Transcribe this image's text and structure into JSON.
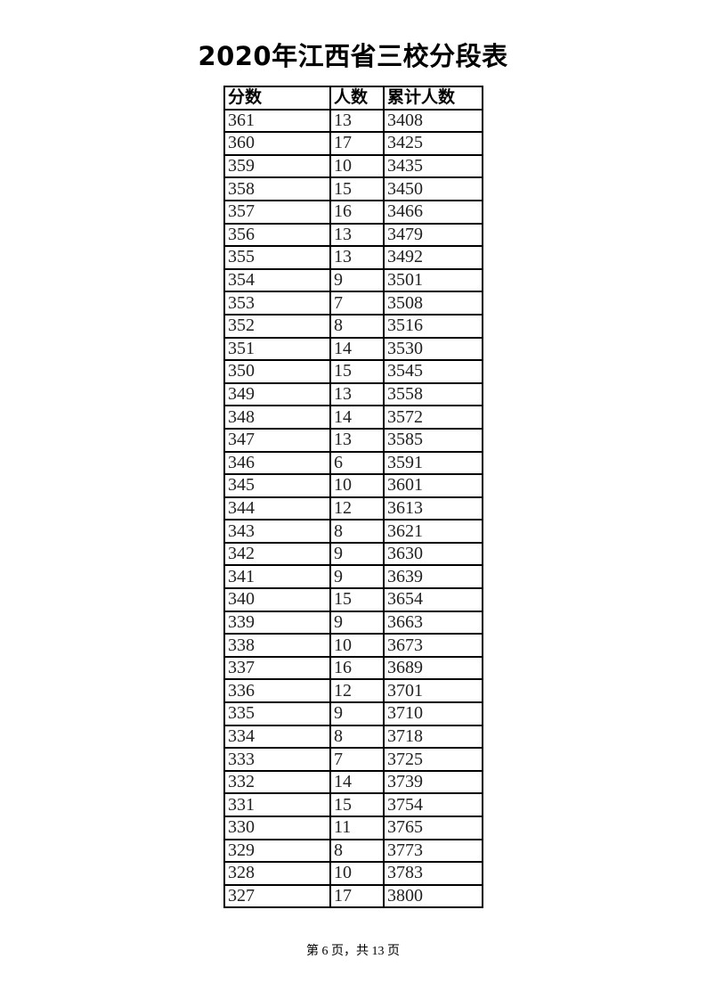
{
  "title": "2020年江西省三校分段表",
  "table": {
    "headers": [
      "分数",
      "人数",
      "累计人数"
    ],
    "rows": [
      [
        "361",
        "13",
        "3408"
      ],
      [
        "360",
        "17",
        "3425"
      ],
      [
        "359",
        "10",
        "3435"
      ],
      [
        "358",
        "15",
        "3450"
      ],
      [
        "357",
        "16",
        "3466"
      ],
      [
        "356",
        "13",
        "3479"
      ],
      [
        "355",
        "13",
        "3492"
      ],
      [
        "354",
        "9",
        "3501"
      ],
      [
        "353",
        "7",
        "3508"
      ],
      [
        "352",
        "8",
        "3516"
      ],
      [
        "351",
        "14",
        "3530"
      ],
      [
        "350",
        "15",
        "3545"
      ],
      [
        "349",
        "13",
        "3558"
      ],
      [
        "348",
        "14",
        "3572"
      ],
      [
        "347",
        "13",
        "3585"
      ],
      [
        "346",
        "6",
        "3591"
      ],
      [
        "345",
        "10",
        "3601"
      ],
      [
        "344",
        "12",
        "3613"
      ],
      [
        "343",
        "8",
        "3621"
      ],
      [
        "342",
        "9",
        "3630"
      ],
      [
        "341",
        "9",
        "3639"
      ],
      [
        "340",
        "15",
        "3654"
      ],
      [
        "339",
        "9",
        "3663"
      ],
      [
        "338",
        "10",
        "3673"
      ],
      [
        "337",
        "16",
        "3689"
      ],
      [
        "336",
        "12",
        "3701"
      ],
      [
        "335",
        "9",
        "3710"
      ],
      [
        "334",
        "8",
        "3718"
      ],
      [
        "333",
        "7",
        "3725"
      ],
      [
        "332",
        "14",
        "3739"
      ],
      [
        "331",
        "15",
        "3754"
      ],
      [
        "330",
        "11",
        "3765"
      ],
      [
        "329",
        "8",
        "3773"
      ],
      [
        "328",
        "10",
        "3783"
      ],
      [
        "327",
        "17",
        "3800"
      ]
    ]
  },
  "footer": "第 6 页，共 13 页"
}
